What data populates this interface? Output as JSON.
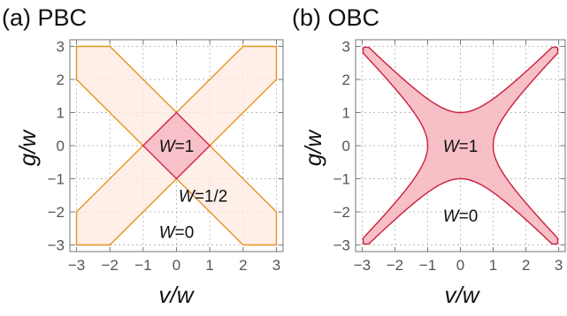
{
  "colors": {
    "pbc_band_fill": "#fdebe0",
    "pbc_band_stroke": "#e6931f",
    "pbc_diamond_fill": "#f7b8c3",
    "pbc_diamond_stroke": "#d6264f",
    "obc_region_fill": "#f6b9c0",
    "obc_region_stroke": "#cc1d3c",
    "grid": "#bbbbbb",
    "frame": "#777777",
    "tick_text": "#555555"
  },
  "chart_data": [
    {
      "type": "area",
      "panel_label": "(a) PBC",
      "xlabel": "v/w",
      "ylabel": "g/w",
      "xlim": [
        -3.2,
        3.2
      ],
      "ylim": [
        -3.2,
        3.2
      ],
      "xticks": [
        -3,
        -2,
        -1,
        0,
        1,
        2,
        3
      ],
      "yticks": [
        -3,
        -2,
        -1,
        0,
        1,
        2,
        3
      ],
      "xtick_labels": [
        "−3",
        "−2",
        "−1",
        "0",
        "1",
        "2",
        "3"
      ],
      "ytick_labels": [
        "−3",
        "−2",
        "−1",
        "0",
        "1",
        "2",
        "3"
      ],
      "grid": true,
      "regions": [
        {
          "label": "W=1/2",
          "shape": "band",
          "points": [
            [
              -3,
              2
            ],
            [
              -3,
              3
            ],
            [
              -2,
              3
            ],
            [
              3,
              -2
            ],
            [
              3,
              -3
            ],
            [
              2,
              -3
            ]
          ]
        },
        {
          "label": "W=1/2",
          "shape": "band",
          "points": [
            [
              -3,
              -2
            ],
            [
              -3,
              -3
            ],
            [
              -2,
              -3
            ],
            [
              3,
              2
            ],
            [
              3,
              3
            ],
            [
              2,
              3
            ]
          ]
        },
        {
          "label": "W=1",
          "shape": "diamond",
          "points": [
            [
              0,
              1
            ],
            [
              1,
              0
            ],
            [
              0,
              -1
            ],
            [
              -1,
              0
            ]
          ]
        }
      ],
      "annotations": [
        {
          "text": "W=1",
          "x": 0,
          "y": 0
        },
        {
          "text": "W=1/2",
          "x": 0.8,
          "y": -1.5
        },
        {
          "text": "W=0",
          "x": 0,
          "y": -2.6
        }
      ]
    },
    {
      "type": "area",
      "panel_label": "(b) OBC",
      "xlabel": "v/w",
      "ylabel": "g/w",
      "xlim": [
        -3.2,
        3.2
      ],
      "ylim": [
        -3.2,
        3.2
      ],
      "xticks": [
        -3,
        -2,
        -1,
        0,
        1,
        2,
        3
      ],
      "yticks": [
        -3,
        -2,
        -1,
        0,
        1,
        2,
        3
      ],
      "xtick_labels": [
        "−3",
        "−2",
        "−1",
        "0",
        "1",
        "2",
        "3"
      ],
      "ytick_labels": [
        "−3",
        "−2",
        "−1",
        "0",
        "1",
        "2",
        "3"
      ],
      "grid": true,
      "regions": [
        {
          "label": "W=1",
          "shape": "hyperbolic",
          "boundary": "|g| <= sqrt(w^2 + v^2) - w/2 ... approx |g| = 1 at v=0, |v| = 1 at g=0, clipped to |v|,|g| <= 3"
        }
      ],
      "boundary_curve": {
        "v": [
          0,
          0.25,
          0.5,
          0.75,
          1.0,
          1.5,
          2.0,
          2.5,
          3.0
        ],
        "g_upper": [
          1.0,
          1.03,
          1.12,
          1.25,
          1.41,
          1.8,
          2.24,
          2.69,
          3.0
        ]
      },
      "annotations": [
        {
          "text": "W=1",
          "x": 0,
          "y": 0
        },
        {
          "text": "W=0",
          "x": 0,
          "y": -2.1
        }
      ]
    }
  ]
}
